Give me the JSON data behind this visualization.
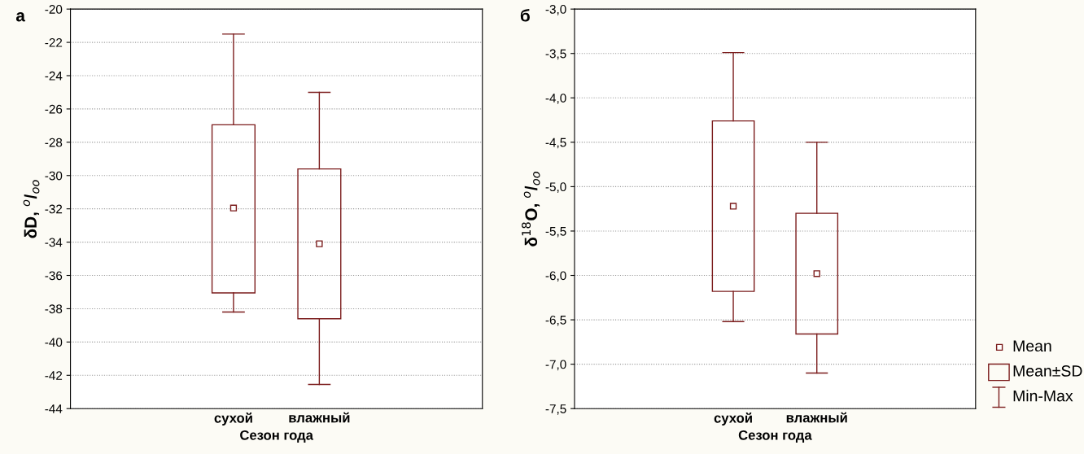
{
  "chart_data": [
    {
      "type": "box",
      "title": "а",
      "xlabel": "Сезон года",
      "ylabel": "δD, $^{o}$/$_{oo}$",
      "categories": [
        "сухой",
        "влажный"
      ],
      "color": "#7b1c1c",
      "grid": "y",
      "boxes": [
        {
          "low": -38.2,
          "q1": -37.05,
          "q3": -26.95,
          "high": -21.5,
          "mean": -31.95
        },
        {
          "low": -42.55,
          "q1": -38.6,
          "q3": -29.6,
          "high": -25.0,
          "mean": -34.1
        }
      ],
      "ylim": [
        -44,
        -20
      ],
      "yticks": [
        -44,
        -42,
        -40,
        -38,
        -36,
        -34,
        -32,
        -30,
        -28,
        -26,
        -24,
        -22,
        -20
      ]
    },
    {
      "type": "box",
      "title": "б",
      "xlabel": "Сезон года",
      "ylabel": "δ$^{18}$O, $^{o}$/$_{oo}$",
      "categories": [
        "сухой",
        "влажный"
      ],
      "color": "#7b1c1c",
      "grid": "y",
      "boxes": [
        {
          "low": -6.52,
          "q1": -6.18,
          "q3": -4.26,
          "high": -3.49,
          "mean": -5.22
        },
        {
          "low": -7.1,
          "q1": -6.66,
          "q3": -5.3,
          "high": -4.5,
          "mean": -5.98
        }
      ],
      "annotations": [
        "Mean",
        "Mean±SD",
        "Min-Max"
      ],
      "ylim": [
        -7.5,
        -3.0
      ],
      "yticks": [
        {
          "value": -7.5,
          "label": "-7,5"
        },
        {
          "value": -7.0,
          "label": "-7,0"
        },
        {
          "value": -6.5,
          "label": "-6,5"
        },
        {
          "value": -6.0,
          "label": "-6,0"
        },
        {
          "value": -5.5,
          "label": "-5,5"
        },
        {
          "value": -5.0,
          "label": "-5,0"
        },
        {
          "value": -4.5,
          "label": "-4,5"
        },
        {
          "value": -4.0,
          "label": "-4,0"
        },
        {
          "value": -3.5,
          "label": "-3,5"
        },
        {
          "value": -3.0,
          "label": "-3,0"
        }
      ]
    }
  ]
}
